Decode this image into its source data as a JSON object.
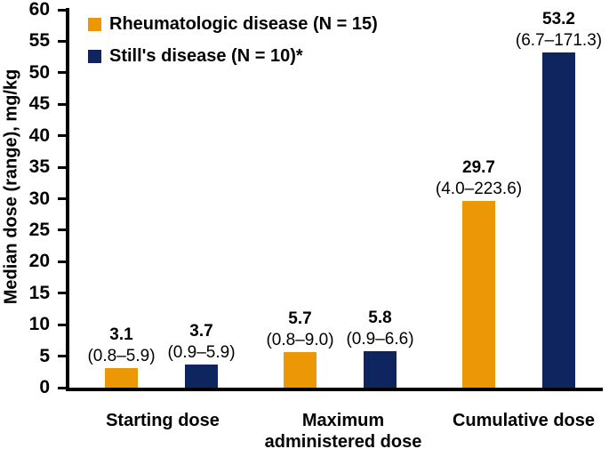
{
  "figure": {
    "background": "#ffffff"
  },
  "chart_data": {
    "type": "bar",
    "title": "",
    "xlabel": "",
    "ylabel": "Median dose (range), mg/kg",
    "ylim": [
      0,
      60
    ],
    "ytick_step": 5,
    "yticks": [
      0,
      5,
      10,
      15,
      20,
      25,
      30,
      35,
      40,
      45,
      50,
      55,
      60
    ],
    "grid": false,
    "legend_position": "top-left",
    "categories": [
      "Starting dose",
      "Maximum administered dose",
      "Cumulative dose"
    ],
    "series": [
      {
        "name": "Rheumatologic disease (N = 15)",
        "color": "#EC9706",
        "values": [
          3.1,
          5.7,
          29.7
        ],
        "value_labels": [
          "3.1",
          "5.7",
          "29.7"
        ],
        "range_labels": [
          "(0.8–5.9)",
          "(0.8–9.0)",
          "(4.0–223.6)"
        ]
      },
      {
        "name": "Still's disease (N = 10)*",
        "color": "#0F2560",
        "values": [
          3.7,
          5.8,
          53.2
        ],
        "value_labels": [
          "3.7",
          "5.8",
          "53.2"
        ],
        "range_labels": [
          "(0.9–5.9)",
          "(0.9–6.6)",
          "(6.7–171.3)"
        ]
      }
    ]
  }
}
